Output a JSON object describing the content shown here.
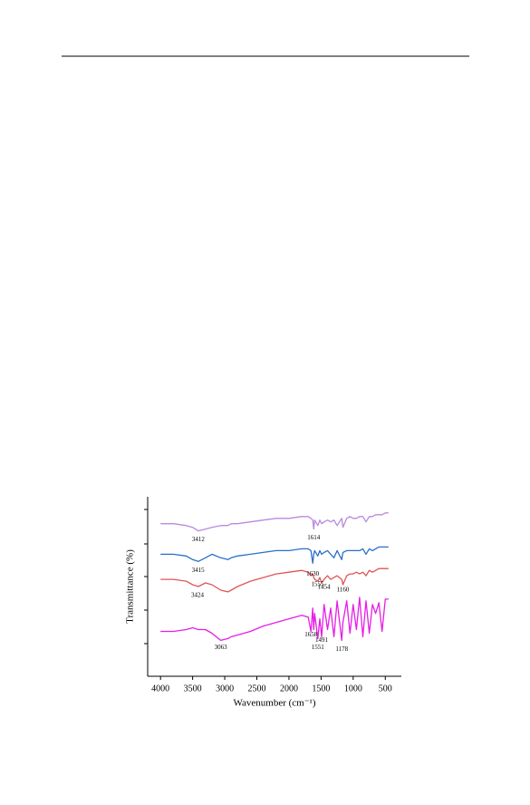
{
  "chart_data": {
    "type": "line",
    "xlabel": "Wavenumber (cm⁻¹)",
    "ylabel": "Transmittance (%)",
    "xlim": [
      4200,
      250
    ],
    "ylim": [
      0,
      100
    ],
    "xticks": [
      4000,
      3500,
      3000,
      2500,
      2000,
      1500,
      1000,
      500
    ],
    "x": [
      4000,
      3800,
      3600,
      3500,
      3412,
      3300,
      3200,
      3063,
      2950,
      2900,
      2800,
      2600,
      2400,
      2200,
      2000,
      1800,
      1700,
      1658,
      1630,
      1614,
      1600,
      1551,
      1520,
      1491,
      1454,
      1400,
      1350,
      1300,
      1250,
      1178,
      1160,
      1100,
      1050,
      1000,
      950,
      900,
      850,
      800,
      750,
      700,
      650,
      600,
      550,
      500,
      450
    ],
    "series": [
      {
        "color": "#b88ae0",
        "values": [
          85,
          85,
          84,
          83,
          81,
          82,
          83,
          84,
          84,
          85,
          85,
          86,
          87,
          88,
          88,
          89,
          89,
          88,
          87,
          82,
          87,
          84,
          87,
          85,
          86,
          87,
          86,
          87,
          84,
          88,
          83,
          88,
          89,
          88,
          88,
          89,
          89,
          86,
          89,
          89,
          90,
          90,
          90,
          91,
          91
        ]
      },
      {
        "color": "#2a6fcc",
        "values": [
          68,
          68,
          67,
          65,
          64,
          66,
          68,
          66,
          65,
          66,
          67,
          68,
          69,
          70,
          70,
          71,
          71,
          70,
          63,
          68,
          70,
          67,
          70,
          68,
          69,
          70,
          68,
          66,
          70,
          65,
          69,
          70,
          70,
          70,
          70,
          70,
          71,
          68,
          71,
          70,
          71,
          72,
          72,
          72,
          72
        ]
      },
      {
        "color": "#e05555",
        "values": [
          54,
          54,
          53,
          51,
          50,
          52,
          51,
          48,
          47,
          48,
          50,
          53,
          55,
          57,
          58,
          59,
          58,
          56,
          57,
          55,
          54,
          53,
          55,
          52,
          54,
          56,
          54,
          55,
          56,
          54,
          51,
          56,
          57,
          57,
          58,
          57,
          58,
          56,
          59,
          58,
          59,
          60,
          60,
          60,
          60
        ]
      },
      {
        "color": "#e61ee6",
        "values": [
          25,
          25,
          26,
          27,
          26,
          26,
          24,
          20,
          21,
          22,
          23,
          25,
          28,
          30,
          32,
          34,
          33,
          25,
          38,
          26,
          35,
          21,
          32,
          22,
          40,
          26,
          38,
          22,
          42,
          20,
          30,
          42,
          24,
          40,
          26,
          44,
          22,
          42,
          24,
          40,
          35,
          41,
          25,
          43,
          43
        ]
      }
    ],
    "annotations": [
      {
        "x": 3412,
        "series": 0
      },
      {
        "x": 1614,
        "series": 0
      },
      {
        "x": 3415,
        "series": 1
      },
      {
        "x": 1630,
        "series": 1
      },
      {
        "x": 3424,
        "series": 2
      },
      {
        "x": 1555,
        "series": 2
      },
      {
        "x": 1454,
        "series": 2
      },
      {
        "x": 1160,
        "series": 2
      },
      {
        "x": 3063,
        "series": 3
      },
      {
        "x": 1658,
        "series": 3
      },
      {
        "x": 1551,
        "series": 3
      },
      {
        "x": 1491,
        "series": 3
      },
      {
        "x": 1178,
        "series": 3
      }
    ]
  }
}
